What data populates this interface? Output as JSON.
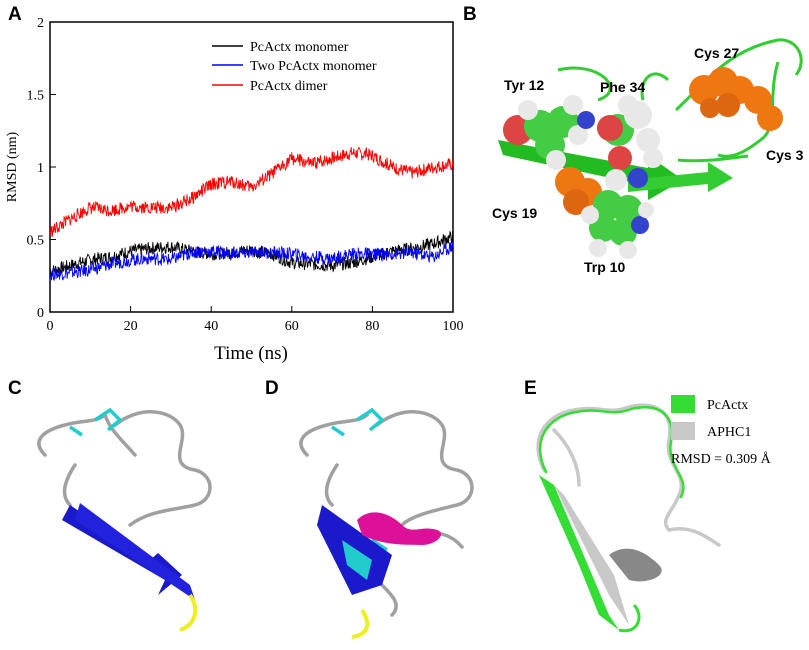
{
  "panels": {
    "A": "A",
    "B": "B",
    "C": "C",
    "D": "D",
    "E": "E"
  },
  "chart_data": {
    "type": "line",
    "title": "",
    "xlabel": "Time (ns)",
    "ylabel": "RMSD (nm)",
    "xlim": [
      0,
      100
    ],
    "ylim": [
      0,
      2
    ],
    "xticks": [
      0,
      20,
      40,
      60,
      80,
      100
    ],
    "yticks": [
      0,
      0.5,
      1,
      1.5,
      2
    ],
    "ytick_labels": [
      "0",
      "0.5",
      "1",
      "1.5",
      "2"
    ],
    "legend_position": "top-right",
    "series": [
      {
        "name": "PcActx monomer",
        "color": "#000000",
        "x": [
          0,
          5,
          10,
          15,
          20,
          25,
          30,
          35,
          40,
          45,
          50,
          55,
          60,
          65,
          70,
          75,
          80,
          85,
          90,
          95,
          100
        ],
        "y": [
          0.28,
          0.32,
          0.36,
          0.38,
          0.42,
          0.44,
          0.45,
          0.42,
          0.4,
          0.41,
          0.43,
          0.4,
          0.34,
          0.33,
          0.32,
          0.34,
          0.38,
          0.42,
          0.44,
          0.47,
          0.52
        ]
      },
      {
        "name": "Two PcActx monomer",
        "color": "#0000ff",
        "x": [
          0,
          5,
          10,
          15,
          20,
          25,
          30,
          35,
          40,
          45,
          50,
          55,
          60,
          65,
          70,
          75,
          80,
          85,
          90,
          95,
          100
        ],
        "y": [
          0.26,
          0.27,
          0.29,
          0.33,
          0.36,
          0.37,
          0.36,
          0.41,
          0.42,
          0.4,
          0.41,
          0.41,
          0.4,
          0.38,
          0.37,
          0.4,
          0.4,
          0.4,
          0.41,
          0.38,
          0.46
        ]
      },
      {
        "name": "PcActx dimer",
        "color": "#ff0000",
        "x": [
          0,
          5,
          10,
          15,
          20,
          25,
          30,
          35,
          40,
          45,
          50,
          55,
          60,
          65,
          70,
          75,
          80,
          85,
          90,
          95,
          100
        ],
        "y": [
          0.55,
          0.64,
          0.72,
          0.7,
          0.73,
          0.72,
          0.72,
          0.78,
          0.88,
          0.9,
          0.86,
          0.95,
          1.06,
          1.02,
          1.06,
          1.1,
          1.08,
          1.0,
          0.96,
          1.0,
          1.02
        ]
      }
    ]
  },
  "panelB": {
    "labels": {
      "tyr12": "Tyr 12",
      "phe34": "Phe 34",
      "cys27": "Cys 27",
      "cys3": "Cys 3",
      "cys19": "Cys 19",
      "trp10": "Trp 10"
    },
    "colors": {
      "ribbon": "#33cc33",
      "cys": "#ee7711",
      "carbon": "#44cc44",
      "oxygen": "#dd4444",
      "nitrogen": "#3344cc",
      "hydrogen": "#e8e8e8"
    }
  },
  "panelE": {
    "legend": [
      {
        "name": "PcActx",
        "color": "#33dd33"
      },
      {
        "name": "APHC1",
        "color": "#c8c8c8"
      }
    ],
    "rmsd_text": "RMSD = 0.309 Å"
  },
  "colors": {
    "sheet": "#1a1acc",
    "loop": "#a0a0a0",
    "disulfide": "#22cccc",
    "turn": "#eeee22",
    "helix": "#dd1199"
  }
}
